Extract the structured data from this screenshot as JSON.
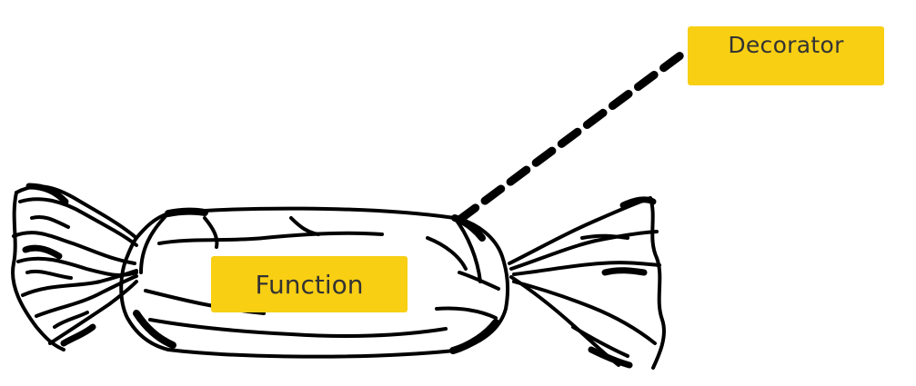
{
  "diagram": {
    "labels": {
      "decorator": "Decorator",
      "function": "Function"
    },
    "colors": {
      "label_fill": "#f8cf13",
      "label_text": "#333333",
      "ink": "#000000",
      "background": "#ffffff"
    },
    "icons": {
      "wrapped_candy": "wrapped-candy-illustration"
    }
  }
}
